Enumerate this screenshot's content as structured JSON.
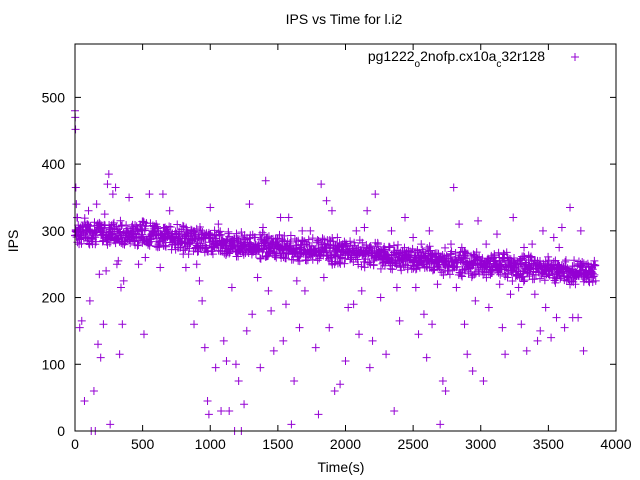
{
  "chart_data": {
    "type": "scatter",
    "title": "IPS vs Time for l.i2",
    "xlabel": "Time(s)",
    "ylabel": "IPS",
    "xlim": [
      0,
      4000
    ],
    "ylim": [
      0,
      580
    ],
    "xticks": [
      0,
      500,
      1000,
      1500,
      2000,
      2500,
      3000,
      3500,
      4000
    ],
    "yticks": [
      0,
      100,
      200,
      300,
      400,
      500
    ],
    "legend_position": "top-right",
    "series": [
      {
        "name": "pg1222_o2nofp.cx10a_c32r128",
        "legend_parts": [
          "pg1222",
          "o",
          "2nofp.cx10a",
          "c",
          "32r128"
        ],
        "color": "#9400d3",
        "marker": "plus",
        "points": [
          [
            0,
            480
          ],
          [
            2,
            470
          ],
          [
            4,
            452
          ],
          [
            6,
            365
          ],
          [
            10,
            340
          ],
          [
            15,
            320
          ],
          [
            20,
            300
          ],
          [
            25,
            295
          ],
          [
            30,
            280
          ],
          [
            35,
            155
          ],
          [
            40,
            305
          ],
          [
            50,
            165
          ],
          [
            60,
            300
          ],
          [
            70,
            45
          ],
          [
            80,
            290
          ],
          [
            90,
            310
          ],
          [
            100,
            330
          ],
          [
            110,
            195
          ],
          [
            120,
            0
          ],
          [
            130,
            280
          ],
          [
            140,
            60
          ],
          [
            150,
            0
          ],
          [
            160,
            340
          ],
          [
            170,
            130
          ],
          [
            180,
            235
          ],
          [
            190,
            110
          ],
          [
            200,
            300
          ],
          [
            210,
            160
          ],
          [
            220,
            325
          ],
          [
            230,
            240
          ],
          [
            240,
            370
          ],
          [
            250,
            385
          ],
          [
            260,
            10
          ],
          [
            270,
            290
          ],
          [
            280,
            355
          ],
          [
            300,
            365
          ],
          [
            310,
            250
          ],
          [
            320,
            255
          ],
          [
            330,
            115
          ],
          [
            340,
            215
          ],
          [
            350,
            160
          ],
          [
            360,
            225
          ],
          [
            380,
            300
          ],
          [
            400,
            350
          ],
          [
            420,
            290
          ],
          [
            450,
            300
          ],
          [
            470,
            250
          ],
          [
            500,
            300
          ],
          [
            510,
            145
          ],
          [
            520,
            260
          ],
          [
            540,
            280
          ],
          [
            550,
            355
          ],
          [
            580,
            300
          ],
          [
            600,
            310
          ],
          [
            630,
            245
          ],
          [
            650,
            355
          ],
          [
            670,
            290
          ],
          [
            700,
            330
          ],
          [
            720,
            290
          ],
          [
            740,
            280
          ],
          [
            760,
            275
          ],
          [
            780,
            275
          ],
          [
            800,
            265
          ],
          [
            820,
            245
          ],
          [
            840,
            265
          ],
          [
            860,
            285
          ],
          [
            880,
            160
          ],
          [
            900,
            250
          ],
          [
            920,
            225
          ],
          [
            940,
            195
          ],
          [
            960,
            125
          ],
          [
            980,
            45
          ],
          [
            990,
            25
          ],
          [
            1000,
            335
          ],
          [
            1020,
            265
          ],
          [
            1040,
            95
          ],
          [
            1060,
            310
          ],
          [
            1080,
            30
          ],
          [
            1100,
            135
          ],
          [
            1120,
            105
          ],
          [
            1140,
            30
          ],
          [
            1160,
            215
          ],
          [
            1180,
            0
          ],
          [
            1190,
            100
          ],
          [
            1210,
            75
          ],
          [
            1230,
            0
          ],
          [
            1250,
            40
          ],
          [
            1270,
            150
          ],
          [
            1290,
            340
          ],
          [
            1310,
            175
          ],
          [
            1330,
            270
          ],
          [
            1350,
            230
          ],
          [
            1370,
            95
          ],
          [
            1390,
            305
          ],
          [
            1410,
            375
          ],
          [
            1430,
            210
          ],
          [
            1450,
            180
          ],
          [
            1470,
            120
          ],
          [
            1500,
            280
          ],
          [
            1520,
            320
          ],
          [
            1540,
            135
          ],
          [
            1560,
            190
          ],
          [
            1580,
            320
          ],
          [
            1600,
            10
          ],
          [
            1620,
            75
          ],
          [
            1640,
            225
          ],
          [
            1660,
            155
          ],
          [
            1680,
            300
          ],
          [
            1700,
            210
          ],
          [
            1720,
            270
          ],
          [
            1740,
            300
          ],
          [
            1760,
            265
          ],
          [
            1780,
            125
          ],
          [
            1800,
            25
          ],
          [
            1820,
            370
          ],
          [
            1840,
            230
          ],
          [
            1860,
            345
          ],
          [
            1880,
            155
          ],
          [
            1900,
            330
          ],
          [
            1920,
            60
          ],
          [
            1940,
            290
          ],
          [
            1960,
            70
          ],
          [
            1980,
            280
          ],
          [
            2000,
            105
          ],
          [
            2020,
            185
          ],
          [
            2040,
            260
          ],
          [
            2060,
            190
          ],
          [
            2080,
            300
          ],
          [
            2100,
            145
          ],
          [
            2120,
            210
          ],
          [
            2140,
            305
          ],
          [
            2160,
            330
          ],
          [
            2180,
            95
          ],
          [
            2200,
            135
          ],
          [
            2220,
            355
          ],
          [
            2240,
            280
          ],
          [
            2260,
            200
          ],
          [
            2280,
            270
          ],
          [
            2300,
            115
          ],
          [
            2320,
            275
          ],
          [
            2340,
            300
          ],
          [
            2360,
            30
          ],
          [
            2380,
            215
          ],
          [
            2400,
            165
          ],
          [
            2420,
            270
          ],
          [
            2440,
            320
          ],
          [
            2460,
            255
          ],
          [
            2480,
            260
          ],
          [
            2500,
            290
          ],
          [
            2520,
            215
          ],
          [
            2540,
            145
          ],
          [
            2560,
            280
          ],
          [
            2580,
            175
          ],
          [
            2600,
            110
          ],
          [
            2620,
            300
          ],
          [
            2640,
            160
          ],
          [
            2660,
            265
          ],
          [
            2680,
            220
          ],
          [
            2700,
            10
          ],
          [
            2720,
            75
          ],
          [
            2740,
            60
          ],
          [
            2760,
            240
          ],
          [
            2780,
            280
          ],
          [
            2800,
            365
          ],
          [
            2820,
            215
          ],
          [
            2840,
            310
          ],
          [
            2860,
            275
          ],
          [
            2880,
            160
          ],
          [
            2900,
            115
          ],
          [
            2920,
            245
          ],
          [
            2940,
            90
          ],
          [
            2960,
            195
          ],
          [
            2980,
            315
          ],
          [
            3000,
            255
          ],
          [
            3020,
            75
          ],
          [
            3040,
            280
          ],
          [
            3060,
            185
          ],
          [
            3080,
            245
          ],
          [
            3100,
            265
          ],
          [
            3120,
            295
          ],
          [
            3140,
            220
          ],
          [
            3160,
            155
          ],
          [
            3180,
            115
          ],
          [
            3200,
            235
          ],
          [
            3220,
            205
          ],
          [
            3240,
            320
          ],
          [
            3260,
            250
          ],
          [
            3280,
            215
          ],
          [
            3300,
            160
          ],
          [
            3320,
            275
          ],
          [
            3340,
            120
          ],
          [
            3360,
            245
          ],
          [
            3380,
            280
          ],
          [
            3400,
            205
          ],
          [
            3420,
            135
          ],
          [
            3440,
            150
          ],
          [
            3460,
            300
          ],
          [
            3480,
            185
          ],
          [
            3500,
            235
          ],
          [
            3520,
            140
          ],
          [
            3540,
            290
          ],
          [
            3560,
            170
          ],
          [
            3580,
            275
          ],
          [
            3600,
            305
          ],
          [
            3620,
            155
          ],
          [
            3640,
            230
          ],
          [
            3660,
            335
          ],
          [
            3680,
            170
          ],
          [
            3700,
            220
          ],
          [
            3720,
            170
          ],
          [
            3740,
            300
          ],
          [
            3760,
            120
          ],
          [
            3780,
            235
          ],
          [
            3800,
            230
          ],
          [
            3820,
            245
          ],
          [
            3840,
            255
          ],
          [
            3850,
            225
          ]
        ]
      }
    ],
    "band": {
      "description": "dense main cluster of IPS samples",
      "center": [
        [
          0,
          300
        ],
        [
          500,
          295
        ],
        [
          1000,
          285
        ],
        [
          1500,
          275
        ],
        [
          2000,
          268
        ],
        [
          2500,
          258
        ],
        [
          3000,
          250
        ],
        [
          3500,
          242
        ],
        [
          3850,
          238
        ]
      ],
      "spread": 22,
      "x_step": 6,
      "x_range": [
        0,
        3850
      ]
    }
  }
}
